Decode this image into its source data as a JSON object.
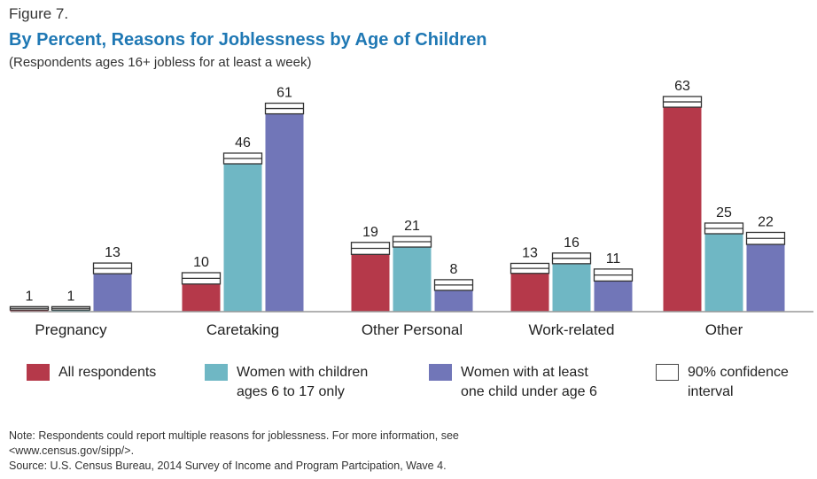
{
  "figure_label": "Figure 7.",
  "chart_data": {
    "type": "bar",
    "title": "By Percent, Reasons for Joblessness by Age of Children",
    "subtitle": "(Respondents ages 16+ jobless for at least a week)",
    "categories": [
      "Pregnancy",
      "Caretaking",
      "Other Personal",
      "Work-related",
      "Other"
    ],
    "series": [
      {
        "name": "All respondents",
        "color": "#b5394a",
        "values": [
          1,
          10,
          19,
          13,
          63
        ],
        "labels": [
          "1",
          "10",
          "19",
          "13",
          "63"
        ]
      },
      {
        "name": "Women with children\nages 6 to 17 only",
        "color": "#6fb7c4",
        "values": [
          1,
          46,
          21,
          16,
          25
        ],
        "labels": [
          "1",
          "46",
          "21",
          "16",
          "25"
        ]
      },
      {
        "name": "Women with at least\none child under age 6",
        "color": "#7176b8",
        "values": [
          13,
          61,
          8,
          11,
          22
        ],
        "labels": [
          "13",
          "61",
          "8",
          "11",
          "22"
        ]
      }
    ],
    "confidence_interval": {
      "name": "90% confidence\ninterval",
      "half_width": [
        0.5,
        0.5,
        1.6,
        1.7,
        1.6,
        1.6,
        1.8,
        1.6,
        1.6,
        1.5,
        1.6,
        1.8,
        1.6,
        1.6,
        1.8
      ]
    },
    "ylim": [
      0,
      67
    ],
    "grid": false,
    "legend": "bottom"
  },
  "notes": [
    "Note: Respondents could report multiple reasons for joblessness. For more information, see",
    "<www.census.gov/sipp/>.",
    "Source: U.S. Census Bureau, 2014 Survey of Income and Program Partcipation, Wave 4."
  ]
}
